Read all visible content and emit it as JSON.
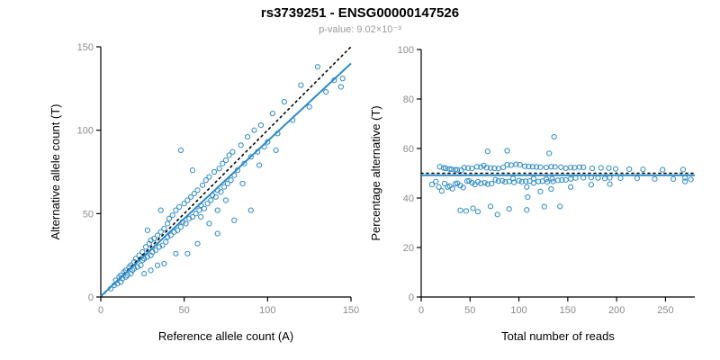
{
  "title": "rs3739251 - ENSG00000147526",
  "subtitle": "p-value: 9.02×10⁻³",
  "colors": {
    "point": "#2e8bc7",
    "fit_line": "#2e8bc7",
    "reference_line": "#000000",
    "axis": "#000000",
    "tick_label": "#8c8c8c",
    "axis_title": "#000000",
    "subtitle": "#9a9a9a"
  },
  "chart_data": [
    {
      "type": "scatter",
      "title": "",
      "xlabel": "Reference allele count (A)",
      "ylabel": "Alternative allele count (T)",
      "xlim": [
        0,
        150
      ],
      "ylim": [
        0,
        150
      ],
      "xticks": [
        0,
        50,
        100,
        150
      ],
      "yticks": [
        0,
        50,
        100,
        150
      ],
      "grid": false,
      "legend": "none",
      "points": [
        [
          6,
          5
        ],
        [
          8,
          7
        ],
        [
          9,
          10
        ],
        [
          10,
          8
        ],
        [
          11,
          12
        ],
        [
          12,
          9
        ],
        [
          12,
          13
        ],
        [
          13,
          11
        ],
        [
          14,
          15
        ],
        [
          15,
          12
        ],
        [
          15,
          16
        ],
        [
          16,
          13
        ],
        [
          17,
          18
        ],
        [
          18,
          14
        ],
        [
          18,
          19
        ],
        [
          19,
          16
        ],
        [
          20,
          21
        ],
        [
          20,
          17
        ],
        [
          21,
          23
        ],
        [
          22,
          18
        ],
        [
          23,
          25
        ],
        [
          24,
          19
        ],
        [
          25,
          27
        ],
        [
          25,
          22
        ],
        [
          26,
          23
        ],
        [
          27,
          30
        ],
        [
          28,
          24
        ],
        [
          29,
          32
        ],
        [
          30,
          25
        ],
        [
          30,
          34
        ],
        [
          31,
          27
        ],
        [
          32,
          35
        ],
        [
          33,
          28
        ],
        [
          34,
          37
        ],
        [
          35,
          30
        ],
        [
          36,
          39
        ],
        [
          37,
          31
        ],
        [
          38,
          41
        ],
        [
          39,
          33
        ],
        [
          40,
          44
        ],
        [
          40,
          36
        ],
        [
          41,
          47
        ],
        [
          42,
          37
        ],
        [
          43,
          49
        ],
        [
          44,
          39
        ],
        [
          45,
          52
        ],
        [
          46,
          40
        ],
        [
          47,
          54
        ],
        [
          48,
          42
        ],
        [
          48,
          88
        ],
        [
          49,
          45
        ],
        [
          50,
          56
        ],
        [
          51,
          44
        ],
        [
          52,
          58
        ],
        [
          53,
          47
        ],
        [
          54,
          60
        ],
        [
          55,
          48
        ],
        [
          56,
          62
        ],
        [
          57,
          50
        ],
        [
          58,
          64
        ],
        [
          59,
          52
        ],
        [
          60,
          55
        ],
        [
          61,
          67
        ],
        [
          62,
          53
        ],
        [
          63,
          70
        ],
        [
          64,
          56
        ],
        [
          65,
          72
        ],
        [
          66,
          58
        ],
        [
          67,
          61
        ],
        [
          68,
          75
        ],
        [
          69,
          60
        ],
        [
          70,
          64
        ],
        [
          71,
          77
        ],
        [
          72,
          63
        ],
        [
          73,
          80
        ],
        [
          74,
          66
        ],
        [
          75,
          82
        ],
        [
          76,
          68
        ],
        [
          77,
          85
        ],
        [
          78,
          70
        ],
        [
          79,
          87
        ],
        [
          80,
          73
        ],
        [
          82,
          76
        ],
        [
          84,
          91
        ],
        [
          86,
          80
        ],
        [
          88,
          96
        ],
        [
          90,
          84
        ],
        [
          92,
          100
        ],
        [
          94,
          87
        ],
        [
          96,
          103
        ],
        [
          98,
          90
        ],
        [
          100,
          93
        ],
        [
          103,
          110
        ],
        [
          106,
          98
        ],
        [
          110,
          117
        ],
        [
          115,
          106
        ],
        [
          120,
          127
        ],
        [
          125,
          114
        ],
        [
          130,
          138
        ],
        [
          135,
          123
        ],
        [
          140,
          130
        ],
        [
          145,
          131
        ],
        [
          144,
          126
        ],
        [
          60,
          48
        ],
        [
          65,
          44
        ],
        [
          70,
          52
        ],
        [
          75,
          58
        ],
        [
          85,
          68
        ],
        [
          95,
          79
        ],
        [
          105,
          88
        ],
        [
          26,
          14
        ],
        [
          34,
          19
        ],
        [
          45,
          26
        ],
        [
          58,
          32
        ],
        [
          70,
          38
        ],
        [
          52,
          26
        ],
        [
          80,
          46
        ],
        [
          90,
          52
        ],
        [
          38,
          20
        ],
        [
          30,
          16
        ],
        [
          36,
          52
        ],
        [
          28,
          40
        ],
        [
          55,
          76
        ]
      ],
      "lines": [
        {
          "label": "identity (y = x)",
          "style": "dotted",
          "slope": 1,
          "intercept": 0,
          "color": "#000000",
          "width": 1.6
        },
        {
          "label": "regression fit",
          "style": "solid",
          "slope": 0.93,
          "intercept": 0.5,
          "color": "#2e8bc7",
          "width": 2
        }
      ]
    },
    {
      "type": "scatter",
      "title": "",
      "xlabel": "Total number of reads",
      "ylabel": "Percentage alternative (T)",
      "xlim": [
        0,
        280
      ],
      "ylim": [
        0,
        100
      ],
      "xticks": [
        0,
        50,
        100,
        150,
        200,
        250
      ],
      "yticks": [
        0,
        20,
        40,
        60,
        80,
        100
      ],
      "grid": false,
      "legend": "none",
      "derived": {
        "source": 0,
        "x": "reference + alternative (total reads)",
        "y": "alternative / total * 100 (percentage alternative)"
      },
      "lines": [
        {
          "label": "expected 50%",
          "style": "dotted",
          "slope": 0,
          "intercept": 50,
          "color": "#000000",
          "width": 1.6
        },
        {
          "label": "regression fit",
          "style": "solid",
          "slope": 0,
          "intercept": 49.2,
          "color": "#2e8bc7",
          "width": 2
        }
      ]
    }
  ]
}
